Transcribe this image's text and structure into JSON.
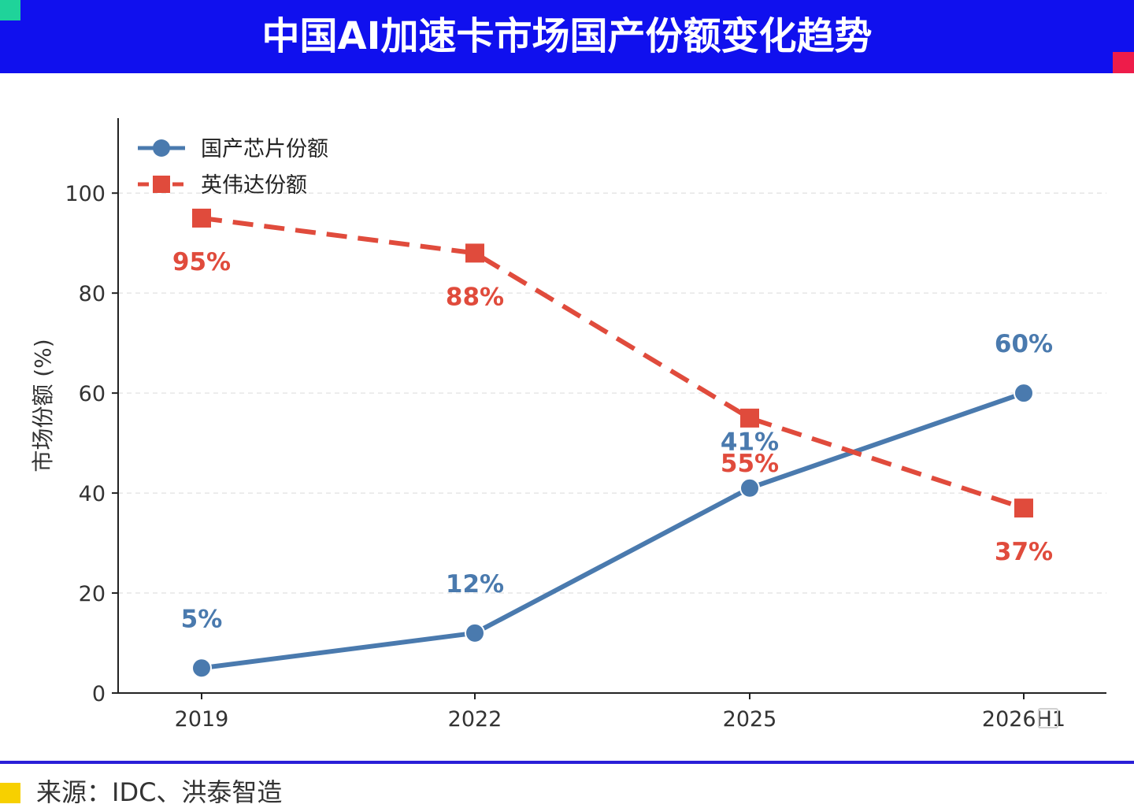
{
  "header": {
    "title": "中国AI加速卡市场国产份额变化趋势",
    "background": "#1010ee",
    "accent_left": "#1fd39a",
    "accent_right": "#ee1c4a"
  },
  "chart_data": {
    "type": "line",
    "title": "中国AI加速卡市场国产份额变化趋势",
    "xlabel": "",
    "ylabel": "市场份额 (%)",
    "categories": [
      "2019",
      "2022",
      "2025",
      "2026H1"
    ],
    "ylim": [
      0,
      115
    ],
    "yticks": [
      0,
      20,
      40,
      60,
      80,
      100
    ],
    "yticklabels": [
      "0",
      "20",
      "40",
      "60",
      "80",
      "100"
    ],
    "grid": true,
    "legend_position": "top-left",
    "series": [
      {
        "name": "国产芯片份额",
        "values": [
          5,
          12,
          41,
          60
        ],
        "labels": [
          "5%",
          "12%",
          "41%",
          "60%"
        ],
        "color": "#4a7aae",
        "marker": "circle",
        "line_style": "solid"
      },
      {
        "name": "英伟达份额",
        "values": [
          95,
          88,
          55,
          37
        ],
        "labels": [
          "95%",
          "88%",
          "55%",
          "37%"
        ],
        "color": "#e04b3c",
        "marker": "square",
        "line_style": "dashed"
      }
    ]
  },
  "footer": {
    "source": "来源：IDC、洪泰智造",
    "marker_color": "#f7d000",
    "line_color": "#2a1fd8"
  }
}
